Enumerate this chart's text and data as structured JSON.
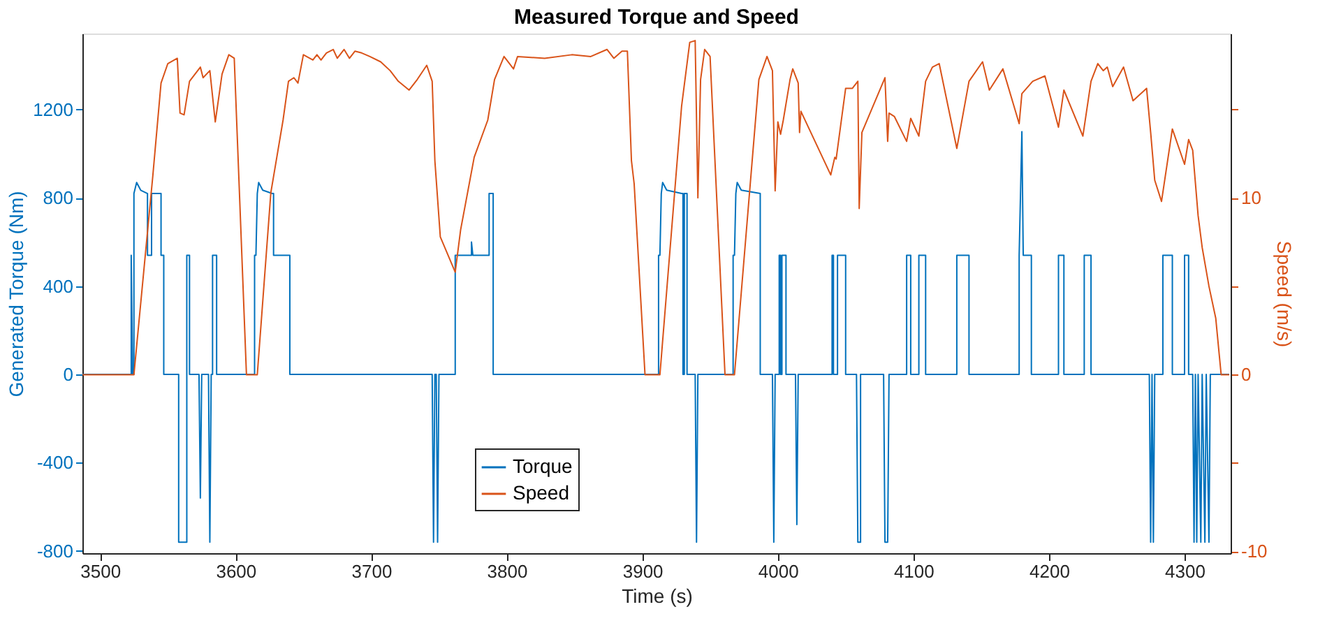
{
  "chart_data": {
    "type": "line",
    "title": "Measured Torque and Speed",
    "xlabel": "Time (s)",
    "ylabel": "Generated Torque (Nm)",
    "y2label": "Speed (m/s)",
    "xlim": [
      3487,
      4334
    ],
    "xticks": [
      3500,
      3600,
      3700,
      3800,
      3900,
      4000,
      4100,
      4200,
      4300
    ],
    "ylim": [
      -810,
      1545
    ],
    "yticks": [
      -800,
      -400,
      0,
      400,
      800,
      1200
    ],
    "y2lim": [
      -10.1,
      19.3
    ],
    "y2ticks": [
      -10,
      {
        "value": -5,
        "label": null
      },
      0,
      {
        "value": 5,
        "label": null
      },
      10,
      {
        "value": 15,
        "label": null
      }
    ],
    "grid": false,
    "legend": "bottom",
    "marker": "none",
    "line_style": "solid",
    "series": [
      {
        "name": "Torque",
        "color": "#0072bd",
        "axis": "y",
        "x": [
          3487,
          3523,
          3523,
          3524,
          3525,
          3525,
          3527,
          3530,
          3535,
          3535,
          3538,
          3538,
          3545,
          3545,
          3547,
          3547,
          3558,
          3558,
          3564,
          3564,
          3566,
          3566,
          3573,
          3574,
          3575,
          3580,
          3581,
          3582,
          3583,
          3583,
          3586,
          3586,
          3614,
          3614,
          3615,
          3616,
          3617,
          3620,
          3627,
          3628,
          3628,
          3640,
          3640,
          3745,
          3746,
          3747,
          3748,
          3749,
          3750,
          3762,
          3762,
          3774,
          3774,
          3775,
          3787,
          3787,
          3790,
          3790,
          3912,
          3912,
          3913,
          3914,
          3915,
          3918,
          3929,
          3930,
          3930,
          3931,
          3931,
          3933,
          3933,
          3939,
          3940,
          3941,
          3967,
          3967,
          3968,
          3969,
          3970,
          3973,
          3987,
          3987,
          3996,
          3997,
          3998,
          4001,
          4001,
          4002,
          4002,
          4003,
          4003,
          4006,
          4006,
          4013,
          4014,
          4015,
          4040,
          4040,
          4041,
          4041,
          4044,
          4044,
          4050,
          4050,
          4058,
          4059,
          4061,
          4061,
          4078,
          4079,
          4081,
          4082,
          4095,
          4095,
          4098,
          4098,
          4104,
          4104,
          4109,
          4109,
          4132,
          4132,
          4141,
          4141,
          4178,
          4178,
          4180,
          4181,
          4187,
          4187,
          4207,
          4207,
          4211,
          4211,
          4226,
          4226,
          4231,
          4231,
          4274,
          4275,
          4276,
          4277,
          4278,
          4284,
          4284,
          4291,
          4291,
          4300,
          4300,
          4303,
          4303,
          4306,
          4307,
          4308,
          4309,
          4310,
          4312,
          4313,
          4315,
          4316,
          4318,
          4319,
          4333
        ],
        "values": [
          0,
          0,
          540,
          0,
          0,
          820,
          870,
          835,
          820,
          540,
          540,
          820,
          820,
          540,
          540,
          0,
          0,
          -760,
          -760,
          540,
          540,
          0,
          0,
          -560,
          0,
          0,
          -760,
          0,
          0,
          540,
          540,
          0,
          0,
          540,
          540,
          820,
          870,
          835,
          820,
          820,
          540,
          540,
          0,
          0,
          -760,
          0,
          0,
          -760,
          0,
          0,
          540,
          540,
          600,
          540,
          540,
          820,
          820,
          0,
          0,
          540,
          540,
          820,
          870,
          835,
          820,
          820,
          0,
          0,
          820,
          820,
          0,
          0,
          -760,
          0,
          0,
          540,
          540,
          820,
          870,
          835,
          820,
          0,
          0,
          -760,
          0,
          0,
          540,
          540,
          0,
          0,
          540,
          540,
          0,
          0,
          -680,
          0,
          0,
          540,
          540,
          0,
          0,
          540,
          540,
          0,
          0,
          -760,
          -760,
          0,
          0,
          -760,
          -760,
          0,
          0,
          540,
          540,
          0,
          0,
          540,
          540,
          0,
          0,
          540,
          540,
          0,
          0,
          540,
          1100,
          540,
          540,
          0,
          0,
          540,
          540,
          0,
          0,
          540,
          540,
          0,
          0,
          -760,
          0,
          -760,
          0,
          0,
          540,
          540,
          0,
          0,
          540,
          540,
          0,
          0,
          -760,
          0,
          -760,
          0,
          -760,
          0,
          -760,
          0,
          -760,
          0,
          0
        ]
      },
      {
        "name": "Speed",
        "color": "#d95319",
        "axis": "y2",
        "x": [
          3487,
          3525,
          3539,
          3545,
          3550,
          3557,
          3559,
          3562,
          3566,
          3574,
          3576,
          3581,
          3585,
          3590,
          3595,
          3599,
          3608,
          3616,
          3626,
          3635,
          3639,
          3643,
          3646,
          3650,
          3657,
          3660,
          3663,
          3667,
          3672,
          3675,
          3680,
          3684,
          3688,
          3693,
          3699,
          3707,
          3714,
          3720,
          3728,
          3734,
          3741,
          3745,
          3747,
          3751,
          3762,
          3766,
          3776,
          3786,
          3791,
          3798,
          3805,
          3808,
          3828,
          3848,
          3862,
          3874,
          3879,
          3885,
          3889,
          3892,
          3894,
          3902,
          3913,
          3929,
          3935,
          3939,
          3941,
          3943,
          3946,
          3950,
          3961,
          3968,
          3986,
          3992,
          3996,
          3998,
          4000,
          4002,
          4004,
          4009,
          4011,
          4015,
          4016,
          4017,
          4039,
          4042,
          4043,
          4050,
          4055,
          4059,
          4060,
          4062,
          4079,
          4081,
          4082,
          4086,
          4095,
          4098,
          4104,
          4109,
          4114,
          4119,
          4132,
          4141,
          4151,
          4156,
          4166,
          4178,
          4180,
          4188,
          4197,
          4207,
          4211,
          4225,
          4231,
          4236,
          4240,
          4243,
          4247,
          4255,
          4262,
          4272,
          4275,
          4278,
          4283,
          4291,
          4300,
          4303,
          4306,
          4310,
          4313,
          4318,
          4323,
          4327,
          4333
        ],
        "values": [
          0,
          0,
          11.3,
          16.5,
          17.6,
          17.9,
          14.8,
          14.7,
          16.6,
          17.4,
          16.8,
          17.2,
          14.3,
          17.0,
          18.1,
          17.9,
          0,
          0,
          10.3,
          14.4,
          16.6,
          16.8,
          16.5,
          18.1,
          17.8,
          18.1,
          17.8,
          18.2,
          18.4,
          17.9,
          18.4,
          17.9,
          18.3,
          18.2,
          18.0,
          17.7,
          17.2,
          16.6,
          16.1,
          16.7,
          17.5,
          16.6,
          12.1,
          7.8,
          5.8,
          8.2,
          12.3,
          14.4,
          16.7,
          18.0,
          17.3,
          18.0,
          17.9,
          18.1,
          18.0,
          18.4,
          17.9,
          18.3,
          18.3,
          12.1,
          10.8,
          0,
          0,
          15.2,
          18.8,
          18.9,
          10.0,
          16.7,
          18.4,
          18.0,
          0,
          0,
          16.7,
          18.0,
          17.2,
          10.4,
          14.3,
          13.6,
          14.4,
          16.7,
          17.3,
          16.5,
          13.7,
          14.9,
          11.3,
          12.3,
          12.2,
          16.2,
          16.2,
          16.6,
          9.4,
          13.7,
          16.8,
          13.2,
          14.8,
          14.6,
          13.2,
          14.5,
          13.5,
          16.6,
          17.4,
          17.6,
          12.8,
          16.6,
          17.7,
          16.1,
          17.3,
          14.2,
          15.9,
          16.6,
          16.9,
          14.0,
          16.1,
          13.5,
          16.6,
          17.6,
          17.2,
          17.4,
          16.3,
          17.4,
          15.5,
          16.2,
          13.7,
          11.0,
          9.8,
          13.9,
          11.9,
          13.3,
          12.7,
          9.0,
          7.2,
          5.0,
          3.2,
          0,
          0
        ]
      }
    ]
  }
}
